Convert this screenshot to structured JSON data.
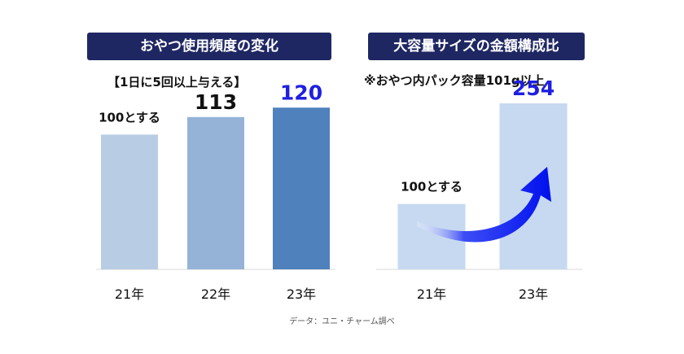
{
  "chart_data": [
    {
      "type": "bar",
      "title": "おやつ使用頻度の変化",
      "subtitle": "【1日に5回以上与える】",
      "categories": [
        "21年",
        "22年",
        "23年"
      ],
      "values": [
        100,
        113,
        120
      ],
      "data_labels": [
        "100とする",
        "113",
        "120"
      ],
      "bar_colors": [
        "#b8cce4",
        "#95b3d7",
        "#4f81bd"
      ],
      "label_colors": [
        "#111111",
        "#111111",
        "#1f1fe0"
      ],
      "ylim": [
        0,
        160
      ],
      "grid": false,
      "legend": "none"
    },
    {
      "type": "bar",
      "title": "大容量サイズの金額構成比",
      "subtitle": "※おやつ内パック容量101g以上",
      "categories": [
        "21年",
        "23年"
      ],
      "values": [
        100,
        254
      ],
      "data_labels": [
        "100とする",
        "254"
      ],
      "bar_colors": [
        "#c6d9f1",
        "#c6d9f1"
      ],
      "label_colors": [
        "#111111",
        "#1f1fe0"
      ],
      "ylim": [
        0,
        330
      ],
      "grid": false,
      "legend": "none",
      "arrow_color": "#0000ee"
    }
  ],
  "source": "データ：ユニ・チャーム調べ"
}
